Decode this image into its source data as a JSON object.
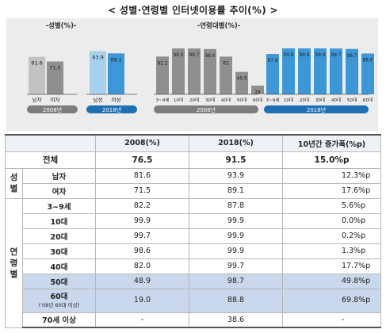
{
  "title": "< 성별·연령별 인터넷이용률 추이(%) >",
  "chart_data": [
    {
      "type": "bar",
      "title": "-성별(%)-",
      "groups": [
        {
          "label": "2008년",
          "categories": [
            "남자",
            "여자"
          ],
          "values": [
            81.6,
            71.5
          ]
        },
        {
          "label": "2018년",
          "categories": [
            "남성",
            "여성"
          ],
          "values": [
            93.9,
            89.1
          ]
        }
      ],
      "ylim": [
        0,
        100
      ]
    },
    {
      "type": "bar",
      "title": "-연령대별(%)-",
      "groups": [
        {
          "label": "2008년",
          "categories": [
            "3~9세",
            "10대",
            "20대",
            "30대",
            "40대",
            "50대",
            "60대"
          ],
          "values": [
            82.2,
            99.9,
            99.7,
            98.6,
            82.0,
            48.9,
            19.0
          ]
        },
        {
          "label": "2018년",
          "categories": [
            "3~9세",
            "10대",
            "20대",
            "30대",
            "40대",
            "50대",
            "60대"
          ],
          "values": [
            87.8,
            99.9,
            99.9,
            99.9,
            99.7,
            98.7,
            88.8
          ]
        }
      ],
      "ylim": [
        0,
        100
      ]
    }
  ],
  "colors": {
    "bar2008_a": "#c2c2c2",
    "bar2008_b": "#8f8f8f",
    "bar2018_a": "#a7d0ec",
    "bar2018_b": "#3d97d6",
    "label2008": "#7d7d7d",
    "label2018": "#1f6fb5"
  },
  "table": {
    "headers": [
      "",
      "",
      "2008(%)",
      "2018(%)",
      "10년간 증가폭(%p)"
    ],
    "total": {
      "label": "전체",
      "v2008": "76.5",
      "v2018": "91.5",
      "inc": "15.0%p"
    },
    "gender_group": "성별",
    "gender": [
      {
        "label": "남자",
        "v2008": "81.6",
        "v2018": "93.9",
        "inc": "12.3%p"
      },
      {
        "label": "여자",
        "v2008": "71.5",
        "v2018": "89.1",
        "inc": "17.6%p"
      }
    ],
    "age_group_1": "연령",
    "age_group_2": "별",
    "age": [
      {
        "label": "3~9세",
        "v2008": "82.2",
        "v2018": "87.8",
        "inc": "5.6%p"
      },
      {
        "label": "10대",
        "v2008": "99.9",
        "v2018": "99.9",
        "inc": "0.0%p"
      },
      {
        "label": "20대",
        "v2008": "99.7",
        "v2018": "99.9",
        "inc": "0.2%p"
      },
      {
        "label": "30대",
        "v2008": "98.6",
        "v2018": "99.9",
        "inc": "1.3%p"
      },
      {
        "label": "40대",
        "v2008": "82.0",
        "v2018": "99.7",
        "inc": "17.7%p"
      },
      {
        "label": "50대",
        "v2008": "48.9",
        "v2018": "98.7",
        "inc": "49.8%p"
      },
      {
        "label": "60대",
        "note": "('08년 60대 이상)",
        "v2008": "19.0",
        "v2018": "88.8",
        "inc": "69.8%p"
      },
      {
        "label": "70세 이상",
        "v2008": "-",
        "v2018": "38.6",
        "inc": "-"
      }
    ]
  }
}
